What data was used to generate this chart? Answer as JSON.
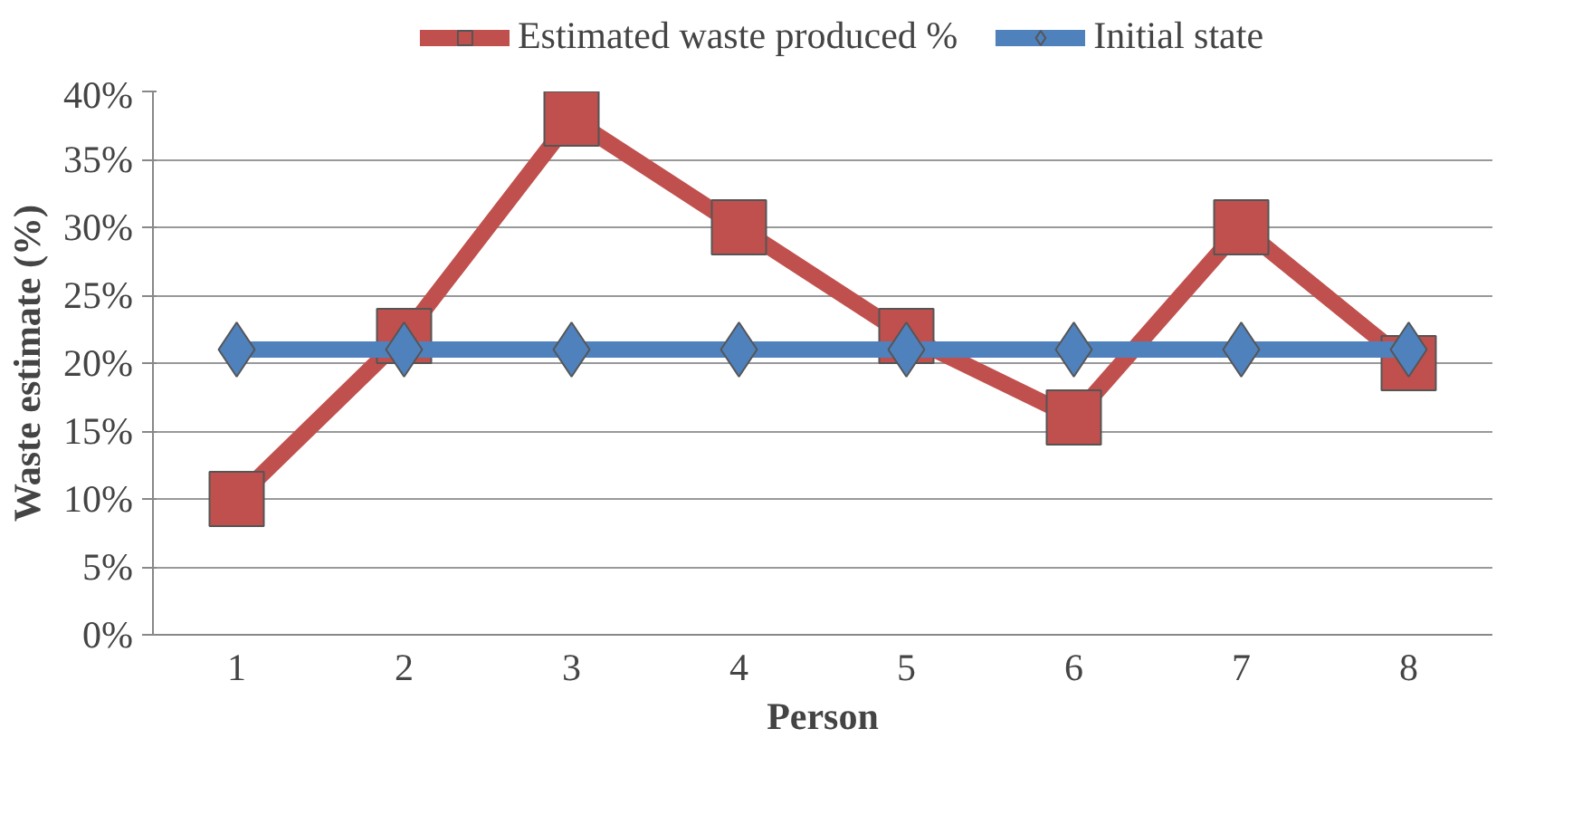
{
  "chart_data": {
    "type": "line",
    "xlabel": "Person",
    "ylabel": "Waste estimate (%)",
    "categories": [
      "1",
      "2",
      "3",
      "4",
      "5",
      "6",
      "7",
      "8"
    ],
    "series": [
      {
        "name": "Estimated waste produced %",
        "color": "#c0504d",
        "marker": "square",
        "values": [
          10,
          22,
          38,
          30,
          22,
          16,
          30,
          20
        ]
      },
      {
        "name": "Initial state",
        "color": "#4f81bd",
        "marker": "diamond",
        "values": [
          21,
          21,
          21,
          21,
          21,
          21,
          21,
          21
        ]
      }
    ],
    "ylim": [
      0,
      40
    ],
    "yticks": [
      {
        "value": 0,
        "label": "0%"
      },
      {
        "value": 5,
        "label": "5%"
      },
      {
        "value": 10,
        "label": "10%"
      },
      {
        "value": 15,
        "label": "15%"
      },
      {
        "value": 20,
        "label": "20%"
      },
      {
        "value": 25,
        "label": "25%"
      },
      {
        "value": 30,
        "label": "30%"
      },
      {
        "value": 35,
        "label": "35%"
      },
      {
        "value": 40,
        "label": "40%"
      }
    ],
    "grid": "y",
    "legend": "top",
    "line_style": "solid"
  }
}
